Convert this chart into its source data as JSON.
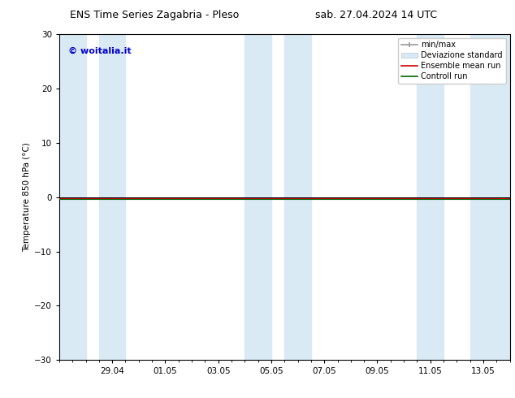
{
  "title_left": "ENS Time Series Zagabria - Pleso",
  "title_right": "sab. 27.04.2024 14 UTC",
  "ylabel": "Temperature 850 hPa (°C)",
  "ylim": [
    -30,
    30
  ],
  "yticks": [
    -30,
    -20,
    -10,
    0,
    10,
    20,
    30
  ],
  "xtick_labels": [
    "29.04",
    "01.05",
    "03.05",
    "05.05",
    "07.05",
    "09.05",
    "11.05",
    "13.05"
  ],
  "xtick_positions": [
    2,
    4,
    6,
    8,
    10,
    12,
    14,
    16
  ],
  "x_min": 0,
  "x_max": 17,
  "watermark": "© woitalia.it",
  "watermark_color": "#0000cc",
  "bg_color": "#ffffff",
  "shade_color": "#daeaf5",
  "shade_divider_color": "#c0d8eb",
  "ensemble_mean_color": "#cc0000",
  "control_run_color": "#006600",
  "legend_labels": [
    "min/max",
    "Deviazione standard",
    "Ensemble mean run",
    "Controll run"
  ],
  "minmax_color": "#999999",
  "stddev_color": "#daeaf5",
  "shaded_bands": [
    [
      0,
      1.0
    ],
    [
      1.5,
      2.5
    ],
    [
      7.0,
      8.0
    ],
    [
      8.5,
      9.5
    ],
    [
      13.5,
      14.5
    ],
    [
      15.5,
      17.0
    ]
  ]
}
